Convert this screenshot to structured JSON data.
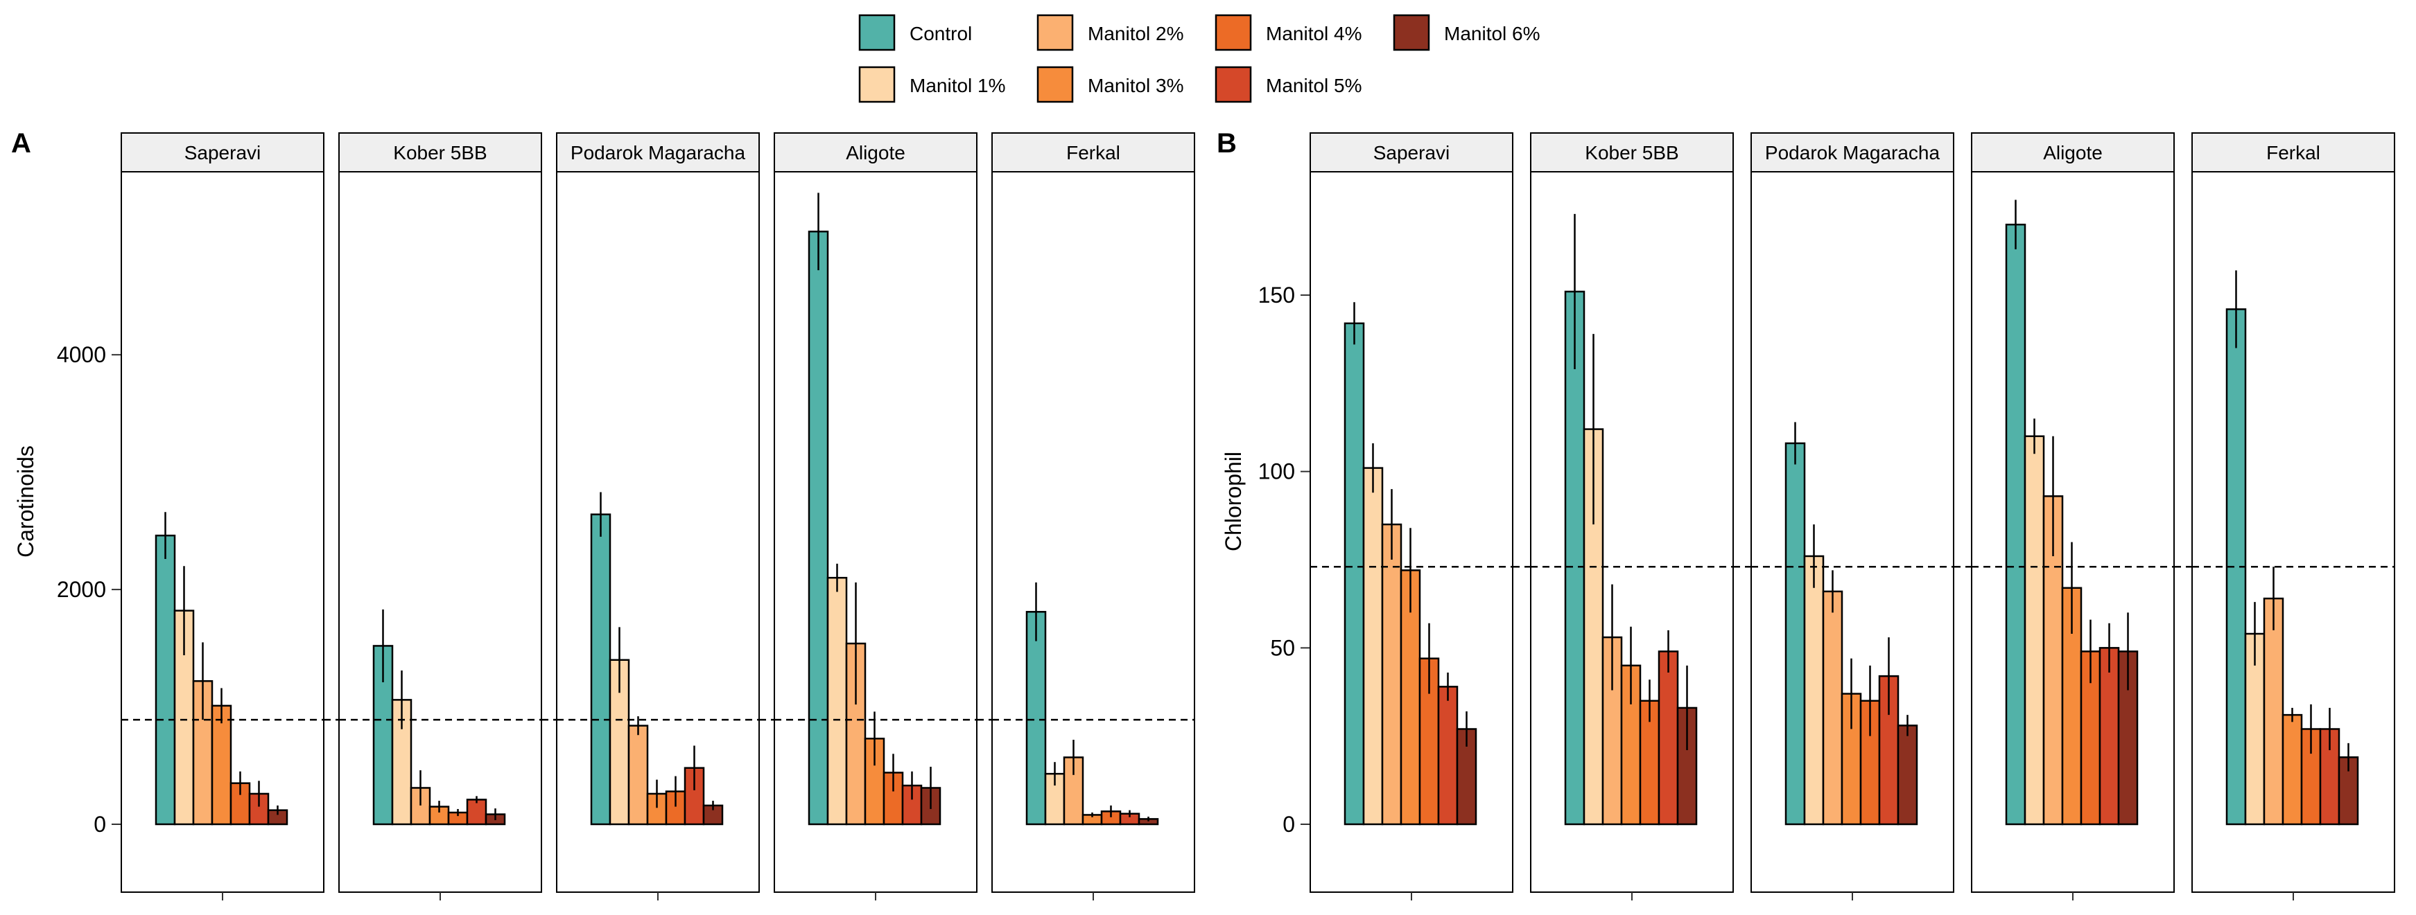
{
  "legend": {
    "entries": [
      {
        "label": "Control",
        "color": "#52B2A8"
      },
      {
        "label": "Manitol 1%",
        "color": "#FDD7A9"
      },
      {
        "label": "Manitol 2%",
        "color": "#FBB071"
      },
      {
        "label": "Manitol 3%",
        "color": "#F68C3C"
      },
      {
        "label": "Manitol 4%",
        "color": "#EC6B26"
      },
      {
        "label": "Manitol 5%",
        "color": "#D54829"
      },
      {
        "label": "Manitol 6%",
        "color": "#8C3020"
      }
    ]
  },
  "chart_data": [
    {
      "panel_label": "A",
      "type": "bar",
      "ylabel": "Carotinoids",
      "ylim": [
        0,
        5500
      ],
      "yticks": [
        0,
        2000,
        4000
      ],
      "reference_line": 890,
      "series_names": [
        "Control",
        "Manitol 1%",
        "Manitol 2%",
        "Manitol 3%",
        "Manitol 4%",
        "Manitol 5%",
        "Manitol 6%"
      ],
      "facets": [
        {
          "name": "Saperavi",
          "values": [
            2460,
            1820,
            1220,
            1010,
            350,
            260,
            120
          ],
          "errors": [
            200,
            380,
            330,
            150,
            100,
            110,
            40
          ]
        },
        {
          "name": "Kober 5BB",
          "values": [
            1520,
            1060,
            310,
            150,
            100,
            210,
            85
          ],
          "errors": [
            310,
            250,
            150,
            50,
            30,
            30,
            50
          ]
        },
        {
          "name": "Podarok Magaracha",
          "values": [
            2640,
            1400,
            840,
            260,
            280,
            480,
            160
          ],
          "errors": [
            190,
            280,
            80,
            120,
            130,
            190,
            40
          ]
        },
        {
          "name": "Aligote",
          "values": [
            5050,
            2100,
            1540,
            730,
            440,
            330,
            310
          ],
          "errors": [
            330,
            120,
            520,
            230,
            160,
            120,
            180
          ]
        },
        {
          "name": "Ferkal",
          "values": [
            1810,
            430,
            570,
            80,
            110,
            90,
            45
          ],
          "errors": [
            250,
            100,
            150,
            20,
            50,
            30,
            20
          ]
        }
      ]
    },
    {
      "panel_label": "B",
      "type": "bar",
      "ylabel": "Chlorophil",
      "ylim": [
        0,
        183
      ],
      "yticks": [
        0,
        50,
        100,
        150
      ],
      "reference_line": 73,
      "series_names": [
        "Control",
        "Manitol 1%",
        "Manitol 2%",
        "Manitol 3%",
        "Manitol 4%",
        "Manitol 5%",
        "Manitol 6%"
      ],
      "facets": [
        {
          "name": "Saperavi",
          "values": [
            142,
            101,
            85,
            72,
            47,
            39,
            27
          ],
          "errors": [
            6,
            7,
            10,
            12,
            10,
            4,
            5
          ]
        },
        {
          "name": "Kober 5BB",
          "values": [
            151,
            112,
            53,
            45,
            35,
            49,
            33
          ],
          "errors": [
            22,
            27,
            15,
            11,
            6,
            6,
            12
          ]
        },
        {
          "name": "Podarok Magaracha",
          "values": [
            108,
            76,
            66,
            37,
            35,
            42,
            28
          ],
          "errors": [
            6,
            9,
            6,
            10,
            10,
            11,
            3
          ]
        },
        {
          "name": "Aligote",
          "values": [
            170,
            110,
            93,
            67,
            49,
            50,
            49
          ],
          "errors": [
            7,
            5,
            17,
            13,
            9,
            7,
            11
          ]
        },
        {
          "name": "Ferkal",
          "values": [
            146,
            54,
            64,
            31,
            27,
            27,
            19
          ],
          "errors": [
            11,
            9,
            9,
            2,
            7,
            6,
            4
          ]
        }
      ]
    }
  ]
}
